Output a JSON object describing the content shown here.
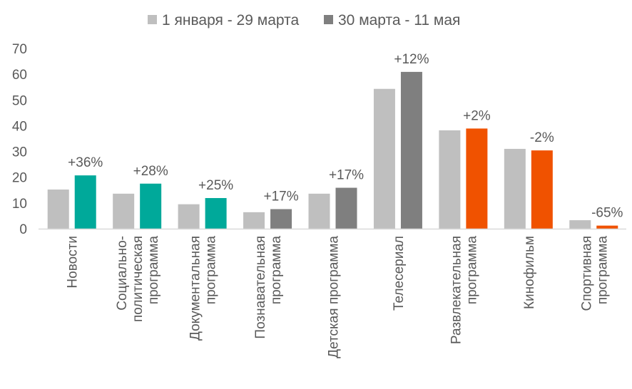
{
  "chart_data": {
    "type": "bar",
    "title": "",
    "xlabel": "",
    "ylabel": "",
    "ylim": [
      0,
      70
    ],
    "yticks": [
      "0",
      "10",
      "20",
      "30",
      "40",
      "50",
      "60",
      "70"
    ],
    "grid": false,
    "legend_position": "top",
    "categories": [
      [
        "Новости"
      ],
      [
        "Социально-",
        "политическая",
        "программа"
      ],
      [
        "Документальная",
        "программа"
      ],
      [
        "Познавательная",
        "программа"
      ],
      [
        "Детская программа"
      ],
      [
        "Телесериал"
      ],
      [
        "Развлекательная",
        "программа"
      ],
      [
        "Кинофильм"
      ],
      [
        "Спортивная",
        "программа"
      ]
    ],
    "series": [
      {
        "name": "1 января - 29 марта",
        "color": "#bfbfbf",
        "values": [
          15.2,
          13.6,
          9.5,
          6.4,
          13.6,
          54.3,
          38.2,
          31.0,
          3.3
        ]
      },
      {
        "name": "30 марта - 11 мая",
        "color": "#7f7f7f",
        "values": [
          20.7,
          17.5,
          11.9,
          7.6,
          15.9,
          60.9,
          38.9,
          30.4,
          1.2
        ],
        "point_colors": [
          "#00a99a",
          "#00a99a",
          "#00a99a",
          "#7f7f7f",
          "#7f7f7f",
          "#7f7f7f",
          "#f05200",
          "#f05200",
          "#f05200"
        ]
      }
    ],
    "annotations": [
      "+36%",
      "+28%",
      "+25%",
      "+17%",
      "+17%",
      "+12%",
      "+2%",
      "-2%",
      "-65%"
    ]
  }
}
